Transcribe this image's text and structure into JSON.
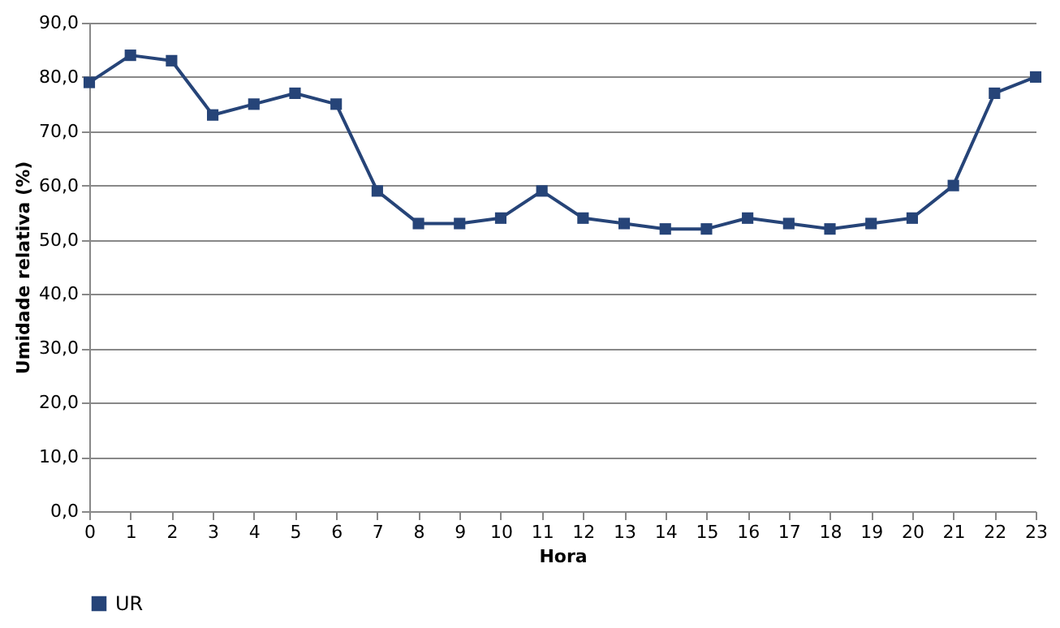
{
  "chart_data": {
    "type": "line",
    "xlabel": "Hora",
    "ylabel": "Umidade relativa (%)",
    "x": [
      0,
      1,
      2,
      3,
      4,
      5,
      6,
      7,
      8,
      9,
      10,
      11,
      12,
      13,
      14,
      15,
      16,
      17,
      18,
      19,
      20,
      21,
      22,
      23
    ],
    "series": [
      {
        "name": "UR",
        "color": "#264478",
        "values": [
          79,
          84,
          83,
          73,
          75,
          77,
          75,
          59,
          53,
          53,
          54,
          59,
          54,
          53,
          52,
          52,
          54,
          53,
          52,
          53,
          54,
          60,
          77,
          80
        ]
      }
    ],
    "xlim": [
      0,
      23
    ],
    "xticks": [
      0,
      1,
      2,
      3,
      4,
      5,
      6,
      7,
      8,
      9,
      10,
      11,
      12,
      13,
      14,
      15,
      16,
      17,
      18,
      19,
      20,
      21,
      22,
      23
    ],
    "ylim": [
      0,
      90
    ],
    "yticks": [
      {
        "value": 0,
        "label": "0,0"
      },
      {
        "value": 10,
        "label": "10,0"
      },
      {
        "value": 20,
        "label": "20,0"
      },
      {
        "value": 30,
        "label": "30,0"
      },
      {
        "value": 40,
        "label": "40,0"
      },
      {
        "value": 50,
        "label": "50,0"
      },
      {
        "value": 60,
        "label": "60,0"
      },
      {
        "value": 70,
        "label": "70,0"
      },
      {
        "value": 80,
        "label": "80,0"
      },
      {
        "value": 90,
        "label": "90,0"
      }
    ],
    "grid": "y",
    "legend": "bottom",
    "marker": "square",
    "line_style": "solid"
  }
}
